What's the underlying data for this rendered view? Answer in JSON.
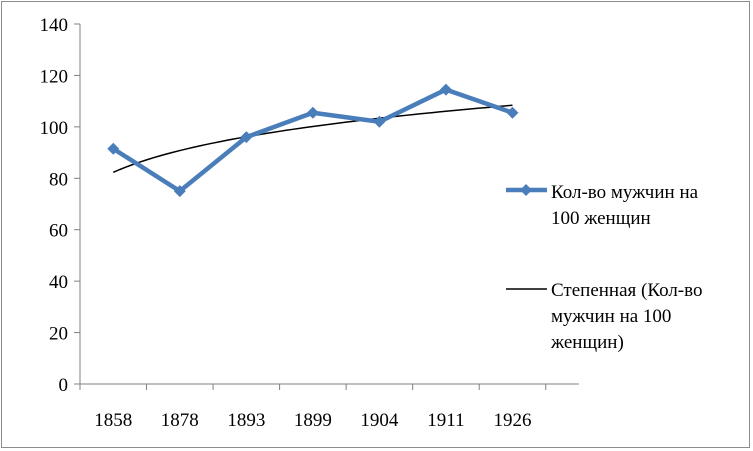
{
  "chart_data": {
    "type": "line",
    "categories": [
      "1858",
      "1878",
      "1893",
      "1899",
      "1904",
      "1911",
      "1926"
    ],
    "series": [
      {
        "name": "Кол-во мужчин на 100 женщин",
        "values": [
          91.5,
          75,
          96,
          105.5,
          102,
          114.5,
          105.5
        ],
        "color": "#4a7ebb",
        "marker": "diamond"
      },
      {
        "name": "Степенная (Кол-во мужчин на 100 женщин)",
        "trendline": "power",
        "values": [
          82.3,
          91.1,
          96.5,
          100.5,
          103.6,
          106.2,
          108.4
        ],
        "color": "#000000"
      }
    ],
    "yticks": [
      "0",
      "20",
      "40",
      "60",
      "80",
      "100",
      "120",
      "140"
    ],
    "ylim": [
      0,
      140
    ],
    "grid": false,
    "legend_position": "right"
  },
  "legend": {
    "series1_label": "Кол-во мужчин на\n100 женщин",
    "series2_label": "Степенная (Кол-во\nмужчин на 100\nженщин)"
  }
}
